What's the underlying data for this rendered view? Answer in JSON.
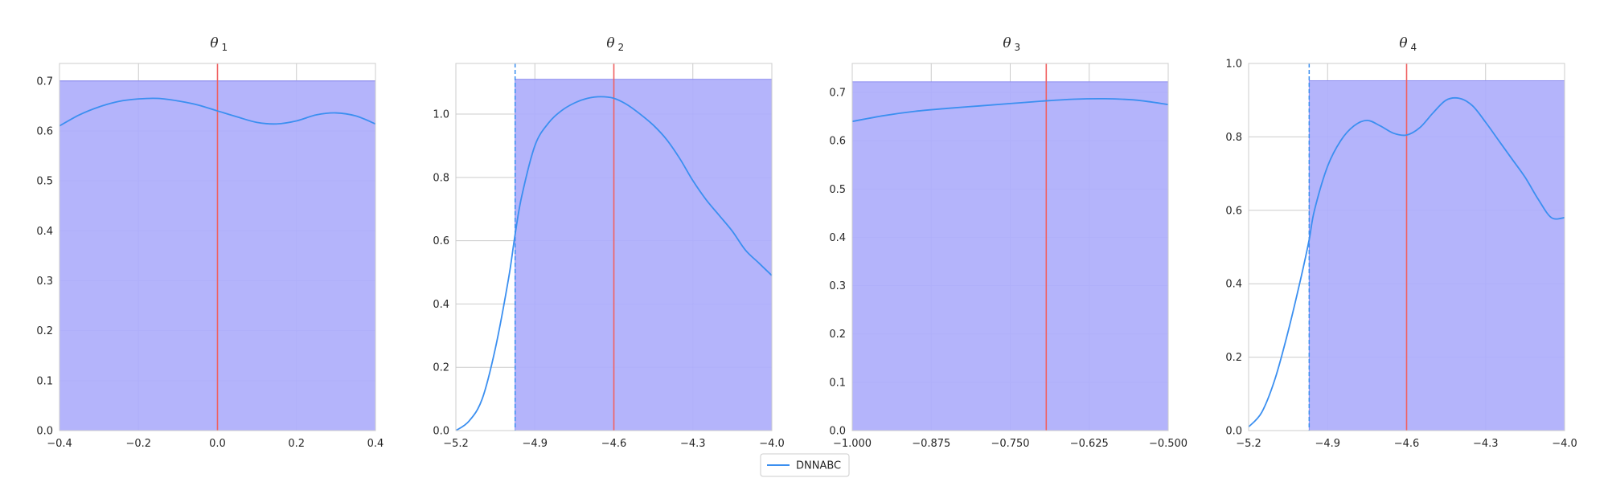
{
  "colors": {
    "posterior": "#3b8ff0",
    "prior_fill": "#b0b0fb",
    "prior_edge": "#8c8cf0",
    "truth": "#f06060",
    "grid": "#cccccc",
    "axis": "#cccccc"
  },
  "legend": {
    "label": "DNNABC"
  },
  "chart_data": [
    {
      "type": "line",
      "title": "θ",
      "subscript": "1",
      "xlim": [
        -0.4,
        0.4
      ],
      "ylim": [
        0.0,
        0.735
      ],
      "xticks": [
        -0.4,
        -0.2,
        0.0,
        0.2,
        0.4
      ],
      "xtick_labels": [
        "−0.4",
        "−0.2",
        "0.0",
        "0.2",
        "0.4"
      ],
      "yticks": [
        0.0,
        0.1,
        0.2,
        0.3,
        0.4,
        0.5,
        0.6,
        0.7
      ],
      "ytick_labels": [
        "0.0",
        "0.1",
        "0.2",
        "0.3",
        "0.4",
        "0.5",
        "0.6",
        "0.7"
      ],
      "prior": {
        "x0": -0.4,
        "x1": 0.4,
        "height": 0.7
      },
      "truth": 0.0,
      "dashed_line": null,
      "series": [
        {
          "name": "DNNABC",
          "x": [
            -0.4,
            -0.35,
            -0.3,
            -0.25,
            -0.2,
            -0.15,
            -0.1,
            -0.05,
            0.0,
            0.05,
            0.1,
            0.15,
            0.2,
            0.25,
            0.3,
            0.35,
            0.4
          ],
          "y": [
            0.61,
            0.632,
            0.648,
            0.659,
            0.664,
            0.665,
            0.66,
            0.652,
            0.64,
            0.628,
            0.617,
            0.614,
            0.62,
            0.632,
            0.636,
            0.63,
            0.614
          ]
        }
      ]
    },
    {
      "type": "line",
      "title": "θ",
      "subscript": "2",
      "xlim": [
        -5.2,
        -4.0
      ],
      "ylim": [
        0.0,
        1.16
      ],
      "xticks": [
        -5.2,
        -4.9,
        -4.6,
        -4.3,
        -4.0
      ],
      "xtick_labels": [
        "−5.2",
        "−4.9",
        "−4.6",
        "−4.3",
        "−4.0"
      ],
      "yticks": [
        0.0,
        0.2,
        0.4,
        0.6,
        0.8,
        1.0
      ],
      "ytick_labels": [
        "0.0",
        "0.2",
        "0.4",
        "0.6",
        "0.8",
        "1.0"
      ],
      "prior": {
        "x0": -4.975,
        "x1": -4.0,
        "height": 1.11
      },
      "truth": -4.6,
      "dashed_line": -4.975,
      "series": [
        {
          "name": "DNNABC",
          "x": [
            -5.2,
            -5.15,
            -5.1,
            -5.05,
            -5.0,
            -4.975,
            -4.95,
            -4.9,
            -4.85,
            -4.8,
            -4.75,
            -4.7,
            -4.65,
            -4.6,
            -4.55,
            -4.5,
            -4.45,
            -4.4,
            -4.35,
            -4.3,
            -4.25,
            -4.2,
            -4.15,
            -4.1,
            -4.05,
            -4.0
          ],
          "y": [
            0.0,
            0.03,
            0.1,
            0.26,
            0.48,
            0.62,
            0.74,
            0.9,
            0.97,
            1.01,
            1.035,
            1.05,
            1.055,
            1.05,
            1.03,
            1.0,
            0.965,
            0.92,
            0.86,
            0.79,
            0.73,
            0.68,
            0.63,
            0.57,
            0.53,
            0.49
          ]
        }
      ]
    },
    {
      "type": "line",
      "title": "θ",
      "subscript": "3",
      "xlim": [
        -1.0,
        -0.5
      ],
      "ylim": [
        0.0,
        0.76
      ],
      "xticks": [
        -1.0,
        -0.875,
        -0.75,
        -0.625,
        -0.5
      ],
      "xtick_labels": [
        "−1.000",
        "−0.875",
        "−0.750",
        "−0.625",
        "−0.500"
      ],
      "yticks": [
        0.0,
        0.1,
        0.2,
        0.3,
        0.4,
        0.5,
        0.6,
        0.7
      ],
      "ytick_labels": [
        "0.0",
        "0.1",
        "0.2",
        "0.3",
        "0.4",
        "0.5",
        "0.6",
        "0.7"
      ],
      "prior": {
        "x0": -1.0,
        "x1": -0.5,
        "height": 0.722
      },
      "truth": -0.693,
      "dashed_line": null,
      "series": [
        {
          "name": "DNNABC",
          "x": [
            -1.0,
            -0.95,
            -0.9,
            -0.85,
            -0.8,
            -0.75,
            -0.7,
            -0.65,
            -0.6,
            -0.55,
            -0.5
          ],
          "y": [
            0.64,
            0.652,
            0.661,
            0.667,
            0.672,
            0.677,
            0.682,
            0.686,
            0.687,
            0.684,
            0.675
          ]
        }
      ]
    },
    {
      "type": "line",
      "title": "θ",
      "subscript": "4",
      "xlim": [
        -5.2,
        -4.0
      ],
      "ylim": [
        0.0,
        1.0
      ],
      "xticks": [
        -5.2,
        -4.9,
        -4.6,
        -4.3,
        -4.0
      ],
      "xtick_labels": [
        "−5.2",
        "−4.9",
        "−4.6",
        "−4.3",
        "−4.0"
      ],
      "yticks": [
        0.0,
        0.2,
        0.4,
        0.6,
        0.8,
        1.0
      ],
      "ytick_labels": [
        "0.0",
        "0.2",
        "0.4",
        "0.6",
        "0.8",
        "1.0"
      ],
      "prior": {
        "x0": -4.97,
        "x1": -4.0,
        "height": 0.953
      },
      "truth": -4.6,
      "dashed_line": -4.97,
      "series": [
        {
          "name": "DNNABC",
          "x": [
            -5.2,
            -5.15,
            -5.1,
            -5.05,
            -5.0,
            -4.97,
            -4.95,
            -4.9,
            -4.85,
            -4.8,
            -4.75,
            -4.7,
            -4.65,
            -4.6,
            -4.55,
            -4.5,
            -4.45,
            -4.4,
            -4.35,
            -4.3,
            -4.25,
            -4.2,
            -4.15,
            -4.1,
            -4.05,
            -4.0
          ],
          "y": [
            0.01,
            0.05,
            0.14,
            0.27,
            0.42,
            0.52,
            0.6,
            0.72,
            0.79,
            0.83,
            0.845,
            0.83,
            0.81,
            0.805,
            0.825,
            0.865,
            0.9,
            0.905,
            0.885,
            0.84,
            0.79,
            0.74,
            0.69,
            0.63,
            0.58,
            0.58
          ]
        }
      ]
    }
  ]
}
